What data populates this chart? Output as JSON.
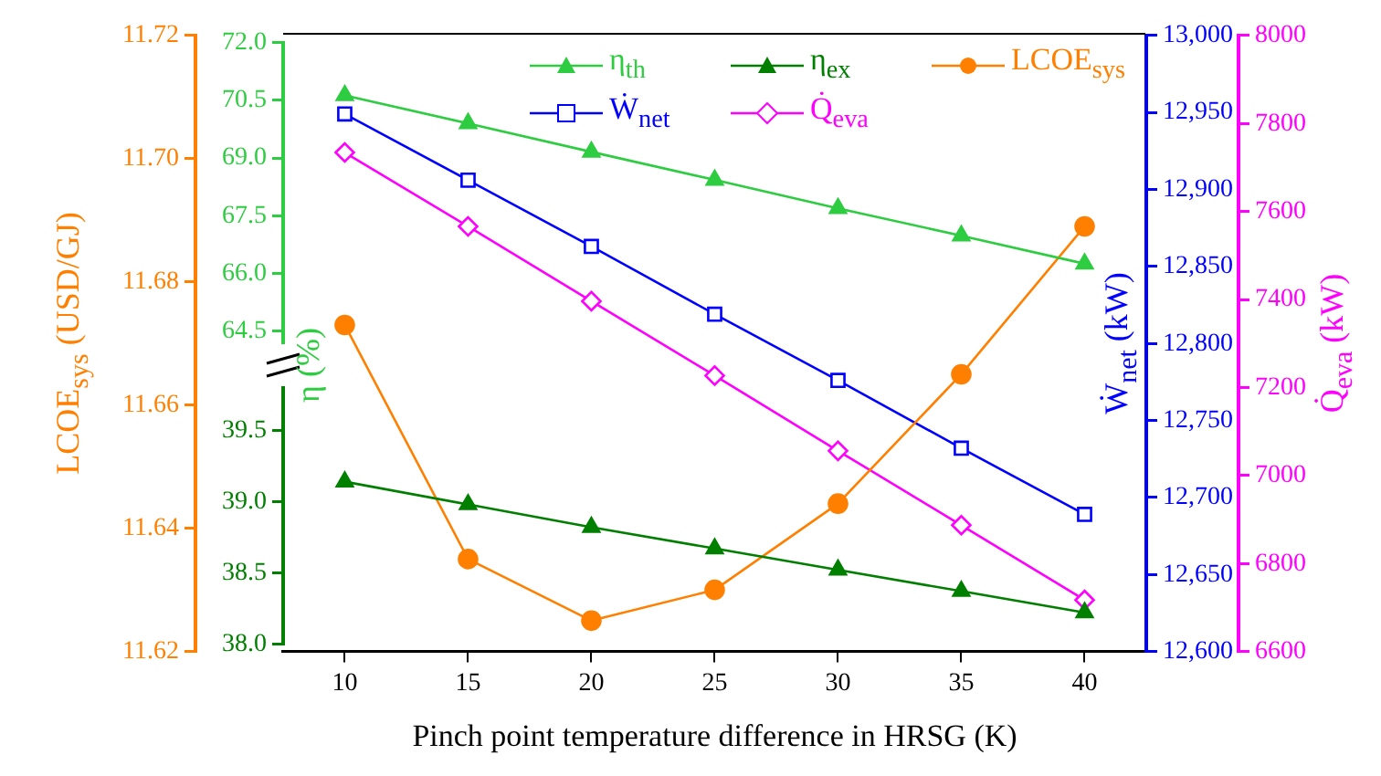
{
  "chart_data": [
    {
      "type": "line",
      "ylabel": "η (%)",
      "x": [
        10,
        15,
        20,
        25,
        30,
        35,
        40
      ],
      "ylim": [
        64.2,
        72
      ],
      "tick_labels": "y",
      "yticks": [
        {
          "value": 64.5,
          "label": "64.5"
        },
        {
          "value": 66,
          "label": "66.0"
        },
        {
          "value": 67.5,
          "label": "67.5"
        },
        {
          "value": 69,
          "label": "69.0"
        },
        {
          "value": 70.5,
          "label": "70.5"
        },
        {
          "value": 72,
          "label": "72.0"
        }
      ],
      "series": [
        {
          "name": "η$_{th}$",
          "color": "#2ecc40",
          "marker": "triangle",
          "values": [
            70.63,
            69.9,
            69.16,
            68.43,
            67.69,
            66.98,
            66.25
          ]
        }
      ]
    },
    {
      "type": "line",
      "x": [
        10,
        15,
        20,
        25,
        30,
        35,
        40
      ],
      "ylim": [
        38,
        39.8
      ],
      "tick_labels": "y",
      "yticks": [
        {
          "value": 38,
          "label": "38.0"
        },
        {
          "value": 38.5,
          "label": "38.5"
        },
        {
          "value": 39,
          "label": "39.0"
        },
        {
          "value": 39.5,
          "label": "39.5"
        }
      ],
      "series": [
        {
          "name": "η$_{ex}$",
          "color": "#007f00",
          "marker": "triangle",
          "values": [
            39.14,
            38.98,
            38.82,
            38.67,
            38.52,
            38.37,
            38.22
          ]
        }
      ]
    },
    {
      "type": "line",
      "xlabel": "Pinch point temperature difference in HRSG (K)",
      "ylabel": "LCOE$_{sys}$ (USD/GJ)",
      "y2label": "Ẇ$_{net}$ (kW)",
      "y3label": "Q̇$_{eva}$ (kW)",
      "legend": "top right",
      "x": [
        10,
        15,
        20,
        25,
        30,
        35,
        40
      ],
      "xlim": [
        7.5,
        42.5
      ],
      "xticks": [
        10,
        15,
        20,
        25,
        30,
        35,
        40
      ],
      "ylim": [
        11.62,
        11.72
      ],
      "yticks": [
        {
          "value": 11.62,
          "label": "11.62"
        },
        {
          "value": 11.64,
          "label": "11.64"
        },
        {
          "value": 11.66,
          "label": "11.66"
        },
        {
          "value": 11.68,
          "label": "11.68"
        },
        {
          "value": 11.7,
          "label": "11.70"
        },
        {
          "value": 11.72,
          "label": "11.72"
        }
      ],
      "y2lim": [
        12600,
        13000
      ],
      "y2ticks": [
        {
          "value": 12600,
          "label": "12,600"
        },
        {
          "value": 12650,
          "label": "12,650"
        },
        {
          "value": 12700,
          "label": "12,700"
        },
        {
          "value": 12750,
          "label": "12,750"
        },
        {
          "value": 12800,
          "label": "12,800"
        },
        {
          "value": 12850,
          "label": "12,850"
        },
        {
          "value": 12900,
          "label": "12,900"
        },
        {
          "value": 12950,
          "label": "12,950"
        },
        {
          "value": 13000,
          "label": "13,000"
        }
      ],
      "y3lim": [
        6600,
        8000
      ],
      "y3ticks": [
        6600,
        6800,
        7000,
        7200,
        7400,
        7600,
        7800,
        8000
      ],
      "series": [
        {
          "name": "LCOE$_{sys}$",
          "color": "#ff8000",
          "marker": "circle",
          "values": [
            11.673,
            11.635,
            11.625,
            11.63,
            11.644,
            11.665,
            11.689
          ]
        },
        {
          "name": "Ẇ$_{net}$",
          "color": "#0000ff",
          "marker": "square",
          "axis": "y2",
          "values": [
            12949,
            12906,
            12863,
            12819,
            12776,
            12732,
            12689
          ]
        },
        {
          "name": "Q̇$_{eva}$",
          "color": "#ff00ff",
          "marker": "diamond",
          "axis": "y3",
          "values": [
            7734,
            7566,
            7396,
            7227,
            7056,
            6887,
            6717
          ]
        }
      ]
    }
  ]
}
